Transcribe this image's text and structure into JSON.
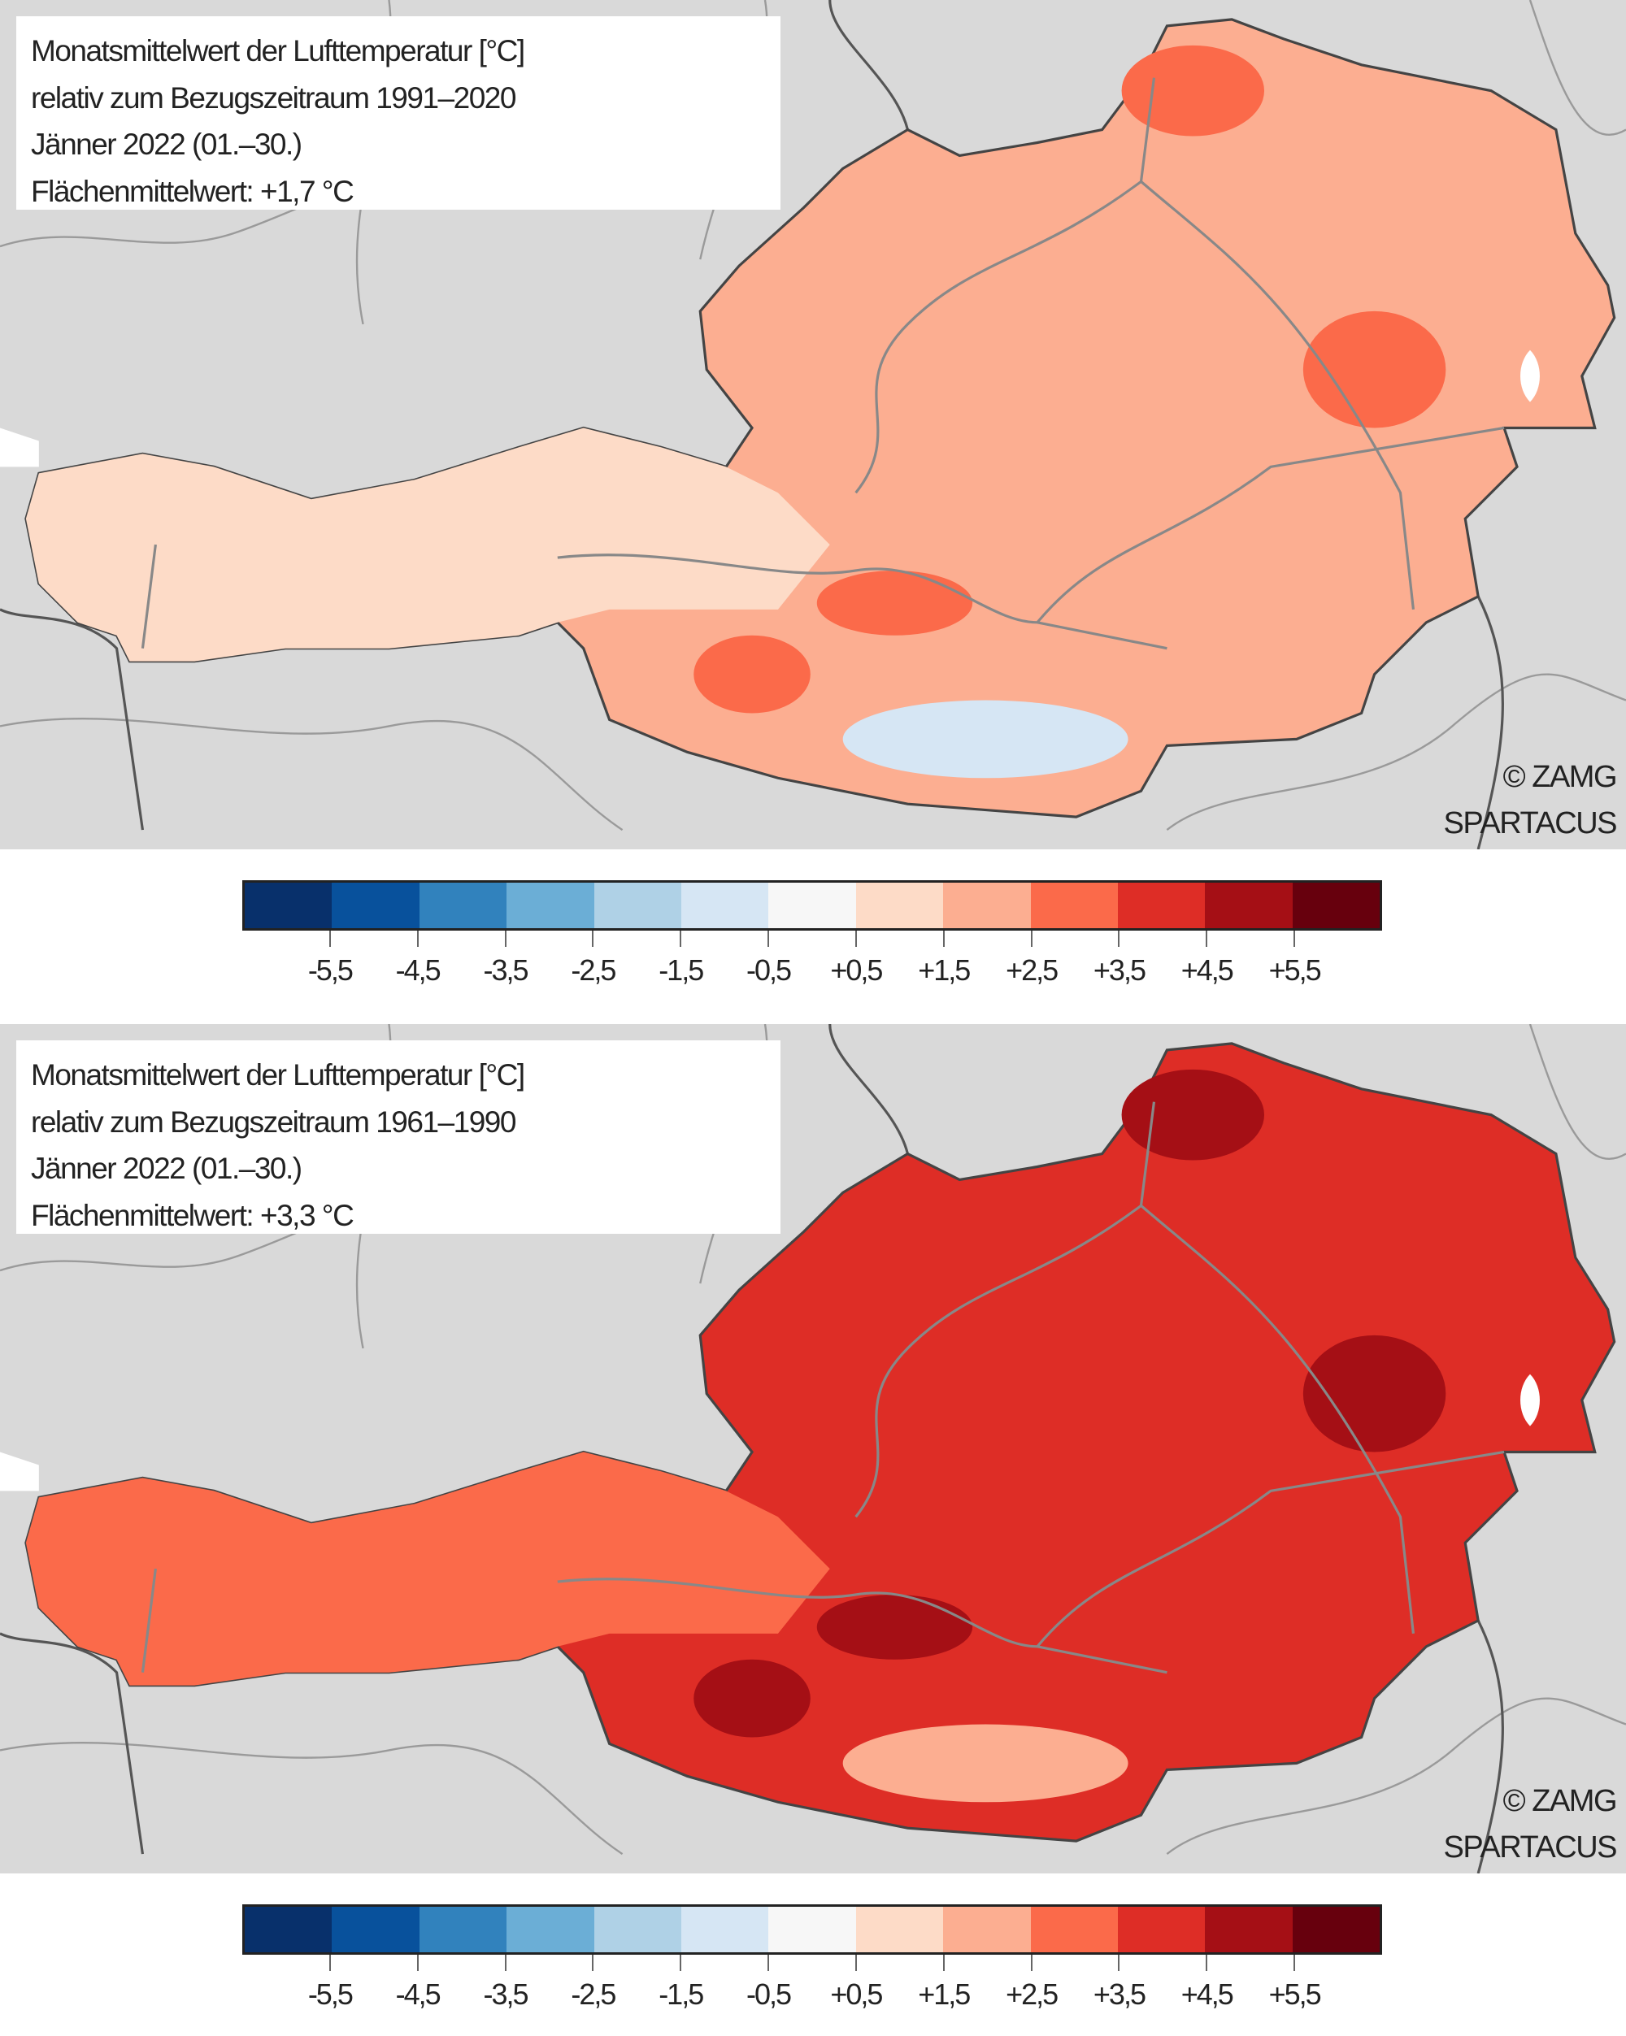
{
  "maps": [
    {
      "title_lines": [
        "Monatsmittelwert der Lufttemperatur [°C]",
        "relativ zum Bezugszeitraum 1991–2020",
        "Jänner 2022 (01.–30.)",
        "Flächenmittelwert: +1,7 °C"
      ],
      "credit_1": "© ZAMG",
      "credit_2": "SPARTACUS",
      "base_fill": "#fcae91",
      "west_fill": "#fddbc7",
      "hot_fill": "#fb6a4a",
      "cold_fill": "#d6e6f4"
    },
    {
      "title_lines": [
        "Monatsmittelwert der Lufttemperatur [°C]",
        "relativ zum Bezugszeitraum 1961–1990",
        "Jänner 2022 (01.–30.)",
        "Flächenmittelwert: +3,3 °C"
      ],
      "credit_1": "© ZAMG",
      "credit_2": "SPARTACUS",
      "base_fill": "#de2d26",
      "west_fill": "#fb6a4a",
      "hot_fill": "#a50f15",
      "cold_fill": "#fcae91"
    }
  ],
  "legend": {
    "colors": [
      "#08306b",
      "#08519c",
      "#3182bd",
      "#6baed6",
      "#afd1e6",
      "#d6e6f4",
      "#f7f7f7",
      "#fddbc7",
      "#fcae91",
      "#fb6a4a",
      "#de2d26",
      "#a50f15",
      "#67000d"
    ],
    "labels": [
      "-5,5",
      "-4,5",
      "-3,5",
      "-2,5",
      "-1,5",
      "-0,5",
      "+0,5",
      "+1,5",
      "+2,5",
      "+3,5",
      "+4,5",
      "+5,5"
    ]
  }
}
